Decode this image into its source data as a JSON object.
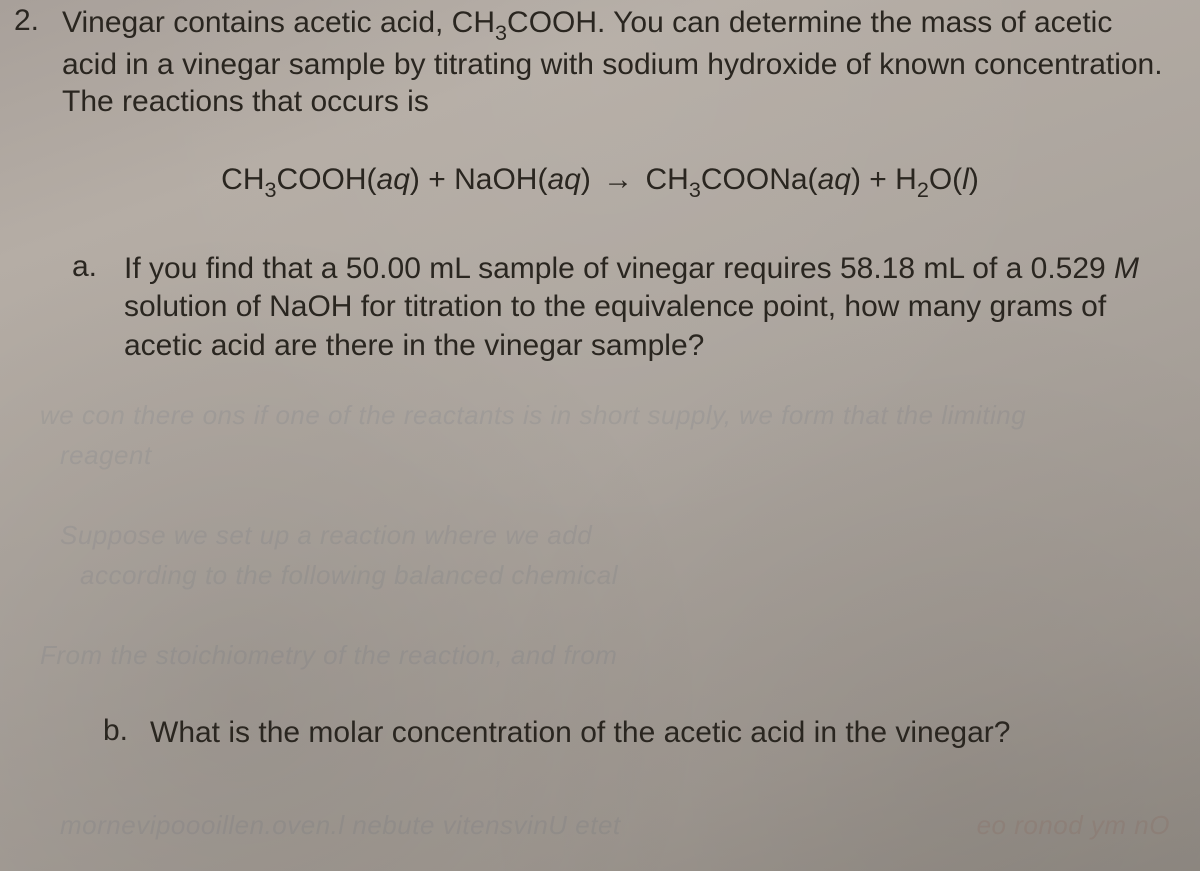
{
  "question": {
    "number": "2.",
    "prompt_line1": "Vinegar contains acetic acid, CH",
    "prompt_formula_sub1": "3",
    "prompt_line1b": "COOH. You can determine the mass of acetic",
    "prompt_line2": "acid in a vinegar sample by titrating with sodium hydroxide of known concentration.",
    "prompt_line3": "The reactions that occurs is"
  },
  "equation": {
    "lhs1_a": "CH",
    "lhs1_sub": "3",
    "lhs1_b": "COOH(",
    "lhs1_state": "aq",
    "lhs1_c": ")",
    "plus1": " + ",
    "lhs2_a": "NaOH(",
    "lhs2_state": "aq",
    "lhs2_b": ")",
    "arrow": "→",
    "rhs1_a": "CH",
    "rhs1_sub": "3",
    "rhs1_b": "COONa(",
    "rhs1_state": "aq",
    "rhs1_c": ")",
    "plus2": " + ",
    "rhs2_a": "H",
    "rhs2_sub": "2",
    "rhs2_b": "O(",
    "rhs2_state": "l",
    "rhs2_c": ")"
  },
  "part_a": {
    "letter": "a.",
    "line1a": "If you find that a 50.00 mL sample of vinegar requires 58.18 mL of a 0.529 ",
    "line1_M": "M",
    "line2": "solution of NaOH for titration to the equivalence point, how many grams of",
    "line3": "acetic acid are there in the vinegar sample?"
  },
  "part_b": {
    "letter": "b.",
    "text": "What is the molar concentration of the acetic acid in the vinegar?"
  },
  "ghost": {
    "g1": "we con there ons if one of the reactants is in short supply, we form that the limiting",
    "g2": "reagent",
    "g3": "Suppose we set up a reaction where we add",
    "g4": "according to the following balanced chemical",
    "g5": "From the stoichiometry of the reaction, and from",
    "g6": "mornevipoooillen.oven.l nebute vitensvinU etet",
    "g7": "eo ronod ym nO"
  },
  "style": {
    "text_color": "#2a2620",
    "bg_gradient_from": "#a8a09a",
    "bg_gradient_to": "#8f8982",
    "font_size_pt": 22
  }
}
